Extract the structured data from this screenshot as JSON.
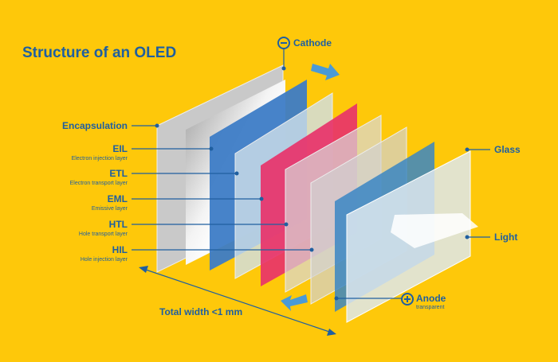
{
  "title": "Structure of an OLED",
  "layers": [
    {
      "label": "Encapsulation"
    },
    {
      "label": "EIL",
      "sublabel": "Electron injection layer"
    },
    {
      "label": "ETL",
      "sublabel": "Electron transport layer"
    },
    {
      "label": "EML",
      "sublabel": "Emissive layer"
    },
    {
      "label": "HTL",
      "sublabel": "Hole transport layer"
    },
    {
      "label": "HIL",
      "sublabel": "Hole injection layer"
    }
  ],
  "cathode": {
    "label": "Cathode"
  },
  "anode": {
    "label": "Anode",
    "sublabel": "transparent"
  },
  "glass": {
    "label": "Glass"
  },
  "light": {
    "label": "Light"
  },
  "total_width": {
    "label": "Total width <1 mm"
  }
}
